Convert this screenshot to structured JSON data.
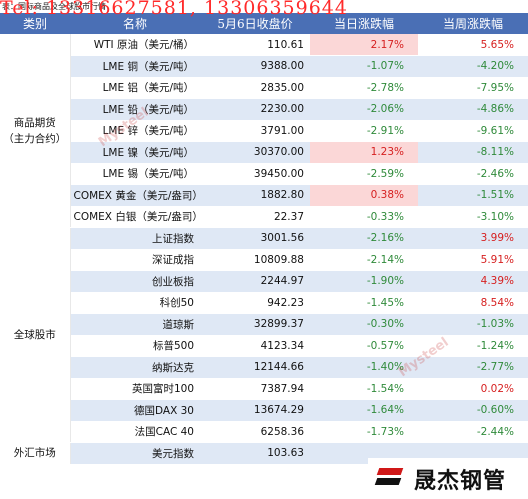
{
  "caption": "表：国际商品及全球股市行情",
  "contact_overlay": "Tel: 13316627581, 13306359644",
  "watermark": "Mysteel",
  "logo_text": "晟杰钢管",
  "colors": {
    "header_bg": "#4a6fb5",
    "up": "#d61f1f",
    "down": "#2f8a3a",
    "row_alt": "#dfe8f5",
    "highlight": "#fbd7d7"
  },
  "headers": {
    "category": "类别",
    "name": "名称",
    "close": "5月6日收盘价",
    "daily": "当日涨跌幅",
    "weekly": "当周涨跌幅"
  },
  "groups": [
    {
      "label": "商品期货\n（主力合约）",
      "rows": [
        {
          "name": "WTI 原油（美元/桶）",
          "close": "110.61",
          "daily": "2.17%",
          "weekly": "5.65%"
        },
        {
          "name": "LME 铜（美元/吨）",
          "close": "9388.00",
          "daily": "-1.07%",
          "weekly": "-4.20%"
        },
        {
          "name": "LME 铝（美元/吨）",
          "close": "2835.00",
          "daily": "-2.78%",
          "weekly": "-7.95%"
        },
        {
          "name": "LME 铅（美元/吨）",
          "close": "2230.00",
          "daily": "-2.06%",
          "weekly": "-4.86%"
        },
        {
          "name": "LME 锌（美元/吨）",
          "close": "3791.00",
          "daily": "-2.91%",
          "weekly": "-9.61%"
        },
        {
          "name": "LME 镍（美元/吨）",
          "close": "30370.00",
          "daily": "1.23%",
          "weekly": "-8.11%"
        },
        {
          "name": "LME 锡（美元/吨）",
          "close": "39450.00",
          "daily": "-2.59%",
          "weekly": "-2.46%"
        },
        {
          "name": "COMEX 黄金（美元/盎司）",
          "close": "1882.80",
          "daily": "0.38%",
          "weekly": "-1.51%"
        },
        {
          "name": "COMEX 白银（美元/盎司）",
          "close": "22.37",
          "daily": "-0.33%",
          "weekly": "-3.10%"
        }
      ]
    },
    {
      "label": "全球股市",
      "rows": [
        {
          "name": "上证指数",
          "close": "3001.56",
          "daily": "-2.16%",
          "weekly": "3.99%"
        },
        {
          "name": "深证成指",
          "close": "10809.88",
          "daily": "-2.14%",
          "weekly": "5.91%"
        },
        {
          "name": "创业板指",
          "close": "2244.97",
          "daily": "-1.90%",
          "weekly": "4.39%"
        },
        {
          "name": "科创50",
          "close": "942.23",
          "daily": "-1.45%",
          "weekly": "8.54%"
        },
        {
          "name": "道琼斯",
          "close": "32899.37",
          "daily": "-0.30%",
          "weekly": "-1.03%"
        },
        {
          "name": "标普500",
          "close": "4123.34",
          "daily": "-0.57%",
          "weekly": "-1.24%"
        },
        {
          "name": "纳斯达克",
          "close": "12144.66",
          "daily": "-1.40%",
          "weekly": "-2.77%"
        },
        {
          "name": "英国富时100",
          "close": "7387.94",
          "daily": "-1.54%",
          "weekly": "0.02%"
        },
        {
          "name": "德国DAX 30",
          "close": "13674.29",
          "daily": "-1.64%",
          "weekly": "-0.60%"
        },
        {
          "name": "法国CAC 40",
          "close": "6258.36",
          "daily": "-1.73%",
          "weekly": "-2.44%"
        }
      ]
    },
    {
      "label": "外汇市场",
      "rows": [
        {
          "name": "美元指数",
          "close": "103.63",
          "daily": "",
          "weekly": ""
        }
      ]
    }
  ]
}
